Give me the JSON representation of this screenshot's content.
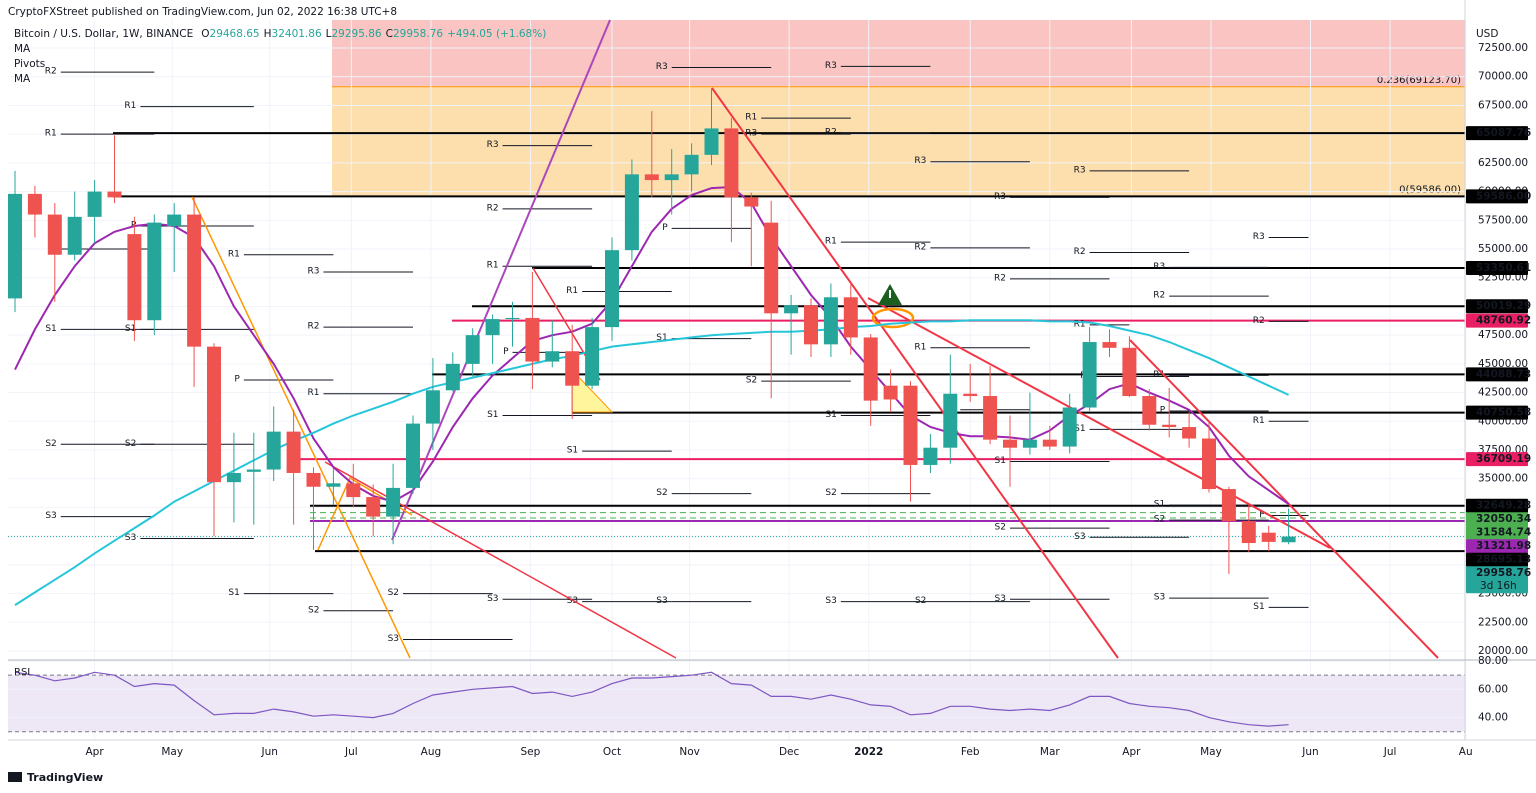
{
  "chart_data": {
    "type": "candlestick",
    "publisher": "CryptoFXStreet published on TradingView.com, Jun 02, 2022 16:38 UTC+8",
    "symbol": "Bitcoin / U.S. Dollar, 1W, BINANCE",
    "ohlc_prefixes": [
      "O",
      "H",
      "L",
      "C"
    ],
    "change": "+494.05 (+1.68%)",
    "indicators": [
      "MA",
      "Pivots",
      "MA"
    ],
    "currency": "USD",
    "countdown": "3d 16h",
    "brand": "TradingView",
    "rsi_title": "RSI",
    "up_color": "#26a69a",
    "down_color": "#ef5350",
    "grid": true,
    "ylim": [
      19390,
      74940
    ],
    "yticks": [
      {
        "value": 72500,
        "label": "72500.00"
      },
      {
        "value": 70000,
        "label": "70000.00"
      },
      {
        "value": 67500,
        "label": "67500.00"
      },
      {
        "value": 65000,
        "label": "65000.00"
      },
      {
        "value": 62500,
        "label": "62500.00"
      },
      {
        "value": 60000,
        "label": "60000.00"
      },
      {
        "value": 57500,
        "label": "57500.00"
      },
      {
        "value": 55000,
        "label": "55000.00"
      },
      {
        "value": 52500,
        "label": "52500.00"
      },
      {
        "value": 50000,
        "label": "50000.00"
      },
      {
        "value": 47500,
        "label": "47500.00"
      },
      {
        "value": 45000,
        "label": "45000.00"
      },
      {
        "value": 42500,
        "label": "42500.00"
      },
      {
        "value": 40000,
        "label": "40000.00"
      },
      {
        "value": 37500,
        "label": "37500.00"
      },
      {
        "value": 35000,
        "label": "35000.00"
      },
      {
        "value": 32500,
        "label": "32500.00"
      },
      {
        "value": 30000,
        "label": "30000.00"
      },
      {
        "value": 27500,
        "label": "27500.00"
      },
      {
        "value": 25000,
        "label": "25000.00"
      },
      {
        "value": 22500,
        "label": "22500.00"
      },
      {
        "value": 20000,
        "label": "20000.00"
      }
    ],
    "xticks": [
      {
        "value": 4,
        "label": "Apr"
      },
      {
        "value": 7.9,
        "label": "May"
      },
      {
        "value": 12.8,
        "label": "Jun"
      },
      {
        "value": 16.9,
        "label": "Jul"
      },
      {
        "value": 20.9,
        "label": "Aug"
      },
      {
        "value": 25.9,
        "label": "Sep"
      },
      {
        "value": 30,
        "label": "Oct"
      },
      {
        "value": 33.9,
        "label": "Nov"
      },
      {
        "value": 38.9,
        "label": "Dec"
      },
      {
        "value": 42.9,
        "label": "2022"
      },
      {
        "value": 48,
        "label": "Feb"
      },
      {
        "value": 52,
        "label": "Mar"
      },
      {
        "value": 56.1,
        "label": "Apr"
      },
      {
        "value": 60.1,
        "label": "May"
      },
      {
        "value": 65.1,
        "label": "Jun"
      },
      {
        "value": 69.1,
        "label": "Jul"
      },
      {
        "value": 72.9,
        "label": "Au"
      }
    ],
    "candles": {
      "open": [
        50700,
        59800,
        58000,
        54500,
        57800,
        60000,
        56300,
        48800,
        57000,
        58000,
        46500,
        34700,
        35600,
        35800,
        39100,
        35500,
        34300,
        34600,
        33400,
        31700,
        34200,
        39800,
        42700,
        45000,
        47500,
        48900,
        49000,
        45200,
        46100,
        43100,
        48200,
        54900,
        61500,
        61000,
        61500,
        63200,
        65500,
        59500,
        57300,
        49400,
        50100,
        46700,
        50800,
        47300,
        43100,
        43100,
        36200,
        37700,
        42400,
        42200,
        38400,
        37700,
        38400,
        37800,
        41200,
        46900,
        46400,
        42200,
        39700,
        39500,
        38500,
        34100,
        31300,
        30300,
        29468.65
      ],
      "high": [
        61800,
        60500,
        59000,
        60000,
        61000,
        64900,
        57800,
        58000,
        59000,
        59500,
        46800,
        39000,
        39000,
        41300,
        41000,
        36000,
        35900,
        36300,
        34500,
        36300,
        40500,
        45500,
        46000,
        48100,
        49300,
        50400,
        53000,
        48800,
        48400,
        49000,
        56000,
        62800,
        67000,
        63700,
        64200,
        69000,
        66400,
        59900,
        59200,
        51000,
        50700,
        52000,
        51900,
        47600,
        44500,
        43500,
        38900,
        45800,
        45000,
        44800,
        40500,
        42500,
        39600,
        42400,
        48200,
        48000,
        47400,
        42800,
        42900,
        40800,
        40000,
        34300,
        32700,
        30900,
        32401.86
      ],
      "low": [
        49500,
        56000,
        50400,
        54000,
        55500,
        59000,
        47000,
        47500,
        53000,
        43000,
        30000,
        31200,
        31000,
        34800,
        31000,
        28800,
        32700,
        32500,
        30000,
        29300,
        33700,
        37500,
        42600,
        43900,
        45000,
        46500,
        42800,
        44700,
        40200,
        42800,
        47000,
        54000,
        59500,
        58000,
        60000,
        62300,
        55600,
        53500,
        42000,
        45800,
        45600,
        45600,
        45800,
        39600,
        40800,
        33000,
        35500,
        36300,
        41700,
        38000,
        34300,
        37100,
        37500,
        37200,
        40900,
        45600,
        42100,
        39200,
        38600,
        37700,
        33800,
        26700,
        28600,
        28700,
        29295.86
      ],
      "close": [
        59800,
        58000,
        54500,
        57800,
        60000,
        59500,
        48800,
        57300,
        58000,
        46500,
        34700,
        35500,
        35800,
        39100,
        35500,
        34300,
        34600,
        33400,
        31700,
        34200,
        39800,
        42700,
        45000,
        47500,
        48900,
        49000,
        45200,
        46100,
        43100,
        48200,
        54900,
        61500,
        61000,
        61500,
        63200,
        65500,
        59500,
        58700,
        49400,
        50100,
        46700,
        50800,
        47300,
        41800,
        41900,
        36200,
        37700,
        42400,
        42200,
        38400,
        37700,
        38400,
        37800,
        41200,
        46900,
        46400,
        42200,
        39700,
        39500,
        38500,
        34100,
        31300,
        29400,
        29500,
        29958.76
      ]
    },
    "lines": [
      {
        "color": "#9c27b0",
        "values": [
          44500,
          48000,
          51000,
          53500,
          55500,
          56500,
          57000,
          57200,
          57000,
          56000,
          53500,
          50000,
          47500,
          45000,
          42000,
          38500,
          36000,
          34500,
          33500,
          33000,
          34000,
          36500,
          39500,
          42000,
          44000,
          45500,
          47000,
          47500,
          47800,
          48500,
          50500,
          53500,
          56500,
          58500,
          59700,
          60300,
          60400,
          59000,
          56000,
          53500,
          51000,
          49000,
          46500,
          44500,
          42500,
          40500,
          39500,
          39000,
          38700,
          38700,
          38600,
          38400,
          39200,
          40500,
          41500,
          42800,
          43300,
          42500,
          41800,
          41000,
          39500,
          37000,
          35200,
          34000,
          32800
        ]
      },
      {
        "color": "#26c6da",
        "values": [
          24000,
          25100,
          26200,
          27300,
          28500,
          29600,
          30700,
          31800,
          33000,
          33900,
          34800,
          35700,
          36600,
          37500,
          38300,
          39000,
          39800,
          40500,
          41100,
          41700,
          42400,
          43000,
          43400,
          43800,
          44200,
          44600,
          45000,
          45400,
          45700,
          46100,
          46500,
          46700,
          46900,
          47100,
          47300,
          47500,
          47600,
          47700,
          47800,
          47800,
          47900,
          48000,
          48200,
          48300,
          48500,
          48600,
          48700,
          48700,
          48800,
          48800,
          48800,
          48800,
          48700,
          48700,
          48600,
          48300,
          47900,
          47500,
          46900,
          46200,
          45500,
          44700,
          43900,
          43100,
          42300
        ]
      }
    ],
    "fib": [
      {
        "value": 69123.7,
        "label": "0.236(69123.70)",
        "color": "#ff9800"
      },
      {
        "value": 59586,
        "label": "0(59586.00)",
        "color": "#4caf50"
      }
    ],
    "levels": [
      {
        "value": 65087.76,
        "label": "65087.76",
        "color": "#000000"
      },
      {
        "value": 59586,
        "label": "59586.00",
        "color": "#000000"
      },
      {
        "value": 53350.61,
        "label": "53350.61",
        "color": "#000000"
      },
      {
        "value": 50019.29,
        "label": "50019.29",
        "color": "#000000"
      },
      {
        "value": 48760.92,
        "label": "48760.92",
        "color": "#e91e63"
      },
      {
        "value": 44088.73,
        "label": "44088.73",
        "color": "#000000"
      },
      {
        "value": 40750.58,
        "label": "40750.58",
        "color": "#000000"
      },
      {
        "value": 36709.19,
        "label": "36709.19",
        "color": "#e91e63"
      },
      {
        "value": 32649.28,
        "label": "32649.28",
        "color": "#000000"
      },
      {
        "value": 32050.34,
        "label": "32050.34",
        "color": "#4caf50",
        "style": "dashed"
      },
      {
        "value": 31584.74,
        "label": "31584.74",
        "color": "#4caf50",
        "style": "dashed"
      },
      {
        "value": 31321.98,
        "label": "31321.98",
        "color": "#9c27b0"
      },
      {
        "value": 28695.13,
        "label": "28695.13",
        "color": "#000000"
      }
    ],
    "pivots": [
      {
        "label": "R2",
        "value": 70400,
        "from": 2.3,
        "to": 7
      },
      {
        "label": "R1",
        "value": 65000,
        "from": 2.3,
        "to": 7
      },
      {
        "label": "P",
        "value": 55000,
        "from": 2.3,
        "to": 7
      },
      {
        "label": "S1",
        "value": 48000,
        "from": 2.3,
        "to": 7
      },
      {
        "label": "S2",
        "value": 38000,
        "from": 2.3,
        "to": 7
      },
      {
        "label": "S3",
        "value": 31700,
        "from": 2.3,
        "to": 7
      },
      {
        "label": "R1",
        "value": 67400,
        "from": 6.3,
        "to": 12
      },
      {
        "label": "P",
        "value": 57000,
        "from": 6.3,
        "to": 12
      },
      {
        "label": "S1",
        "value": 48000,
        "from": 6.3,
        "to": 12
      },
      {
        "label": "S2",
        "value": 38000,
        "from": 6.3,
        "to": 12
      },
      {
        "label": "S3",
        "value": 29800,
        "from": 6.3,
        "to": 12
      },
      {
        "label": "R1",
        "value": 54500,
        "from": 11.5,
        "to": 16
      },
      {
        "label": "P",
        "value": 43600,
        "from": 11.5,
        "to": 16
      },
      {
        "label": "S1",
        "value": 25000,
        "from": 11.5,
        "to": 16
      },
      {
        "label": "R3",
        "value": 53000,
        "from": 15.5,
        "to": 20
      },
      {
        "label": "R2",
        "value": 48200,
        "from": 15.5,
        "to": 20
      },
      {
        "label": "R1",
        "value": 42400,
        "from": 15.5,
        "to": 20
      },
      {
        "label": "S2",
        "value": 23500,
        "from": 15.5,
        "to": 19
      },
      {
        "label": "S2",
        "value": 25000,
        "from": 19.5,
        "to": 24
      },
      {
        "label": "S3",
        "value": 21000,
        "from": 19.5,
        "to": 25
      },
      {
        "label": "R3",
        "value": 64000,
        "from": 24.5,
        "to": 29
      },
      {
        "label": "R2",
        "value": 58500,
        "from": 24.5,
        "to": 29
      },
      {
        "label": "R1",
        "value": 53500,
        "from": 24.5,
        "to": 29
      },
      {
        "label": "P",
        "value": 46000,
        "from": 25,
        "to": 29
      },
      {
        "label": "S1",
        "value": 40500,
        "from": 24.5,
        "to": 29
      },
      {
        "label": "S3",
        "value": 24500,
        "from": 24.5,
        "to": 29
      },
      {
        "label": "R1",
        "value": 51300,
        "from": 28.5,
        "to": 33
      },
      {
        "label": "S1",
        "value": 37400,
        "from": 28.5,
        "to": 33
      },
      {
        "label": "S3",
        "value": 24300,
        "from": 28.5,
        "to": 33
      },
      {
        "label": "P",
        "value": 56800,
        "from": 33,
        "to": 37
      },
      {
        "label": "R3",
        "value": 70800,
        "from": 33,
        "to": 38
      },
      {
        "label": "S1",
        "value": 47200,
        "from": 33,
        "to": 37
      },
      {
        "label": "S2",
        "value": 33700,
        "from": 33,
        "to": 37
      },
      {
        "label": "S3",
        "value": 24300,
        "from": 33,
        "to": 37
      },
      {
        "label": "R1",
        "value": 66400,
        "from": 37.5,
        "to": 42
      },
      {
        "label": "S2",
        "value": 43500,
        "from": 37.5,
        "to": 42
      },
      {
        "label": "R3",
        "value": 65000,
        "from": 37.5,
        "to": 42
      },
      {
        "label": "R3",
        "value": 70900,
        "from": 41.5,
        "to": 46
      },
      {
        "label": "R2",
        "value": 65100,
        "from": 41.5,
        "to": 46
      },
      {
        "label": "R1",
        "value": 55600,
        "from": 41.5,
        "to": 46
      },
      {
        "label": "S1",
        "value": 40500,
        "from": 41.5,
        "to": 46
      },
      {
        "label": "S2",
        "value": 33700,
        "from": 41.5,
        "to": 46
      },
      {
        "label": "S3",
        "value": 24300,
        "from": 41.5,
        "to": 46
      },
      {
        "label": "R3",
        "value": 62600,
        "from": 46,
        "to": 51
      },
      {
        "label": "R2",
        "value": 55100,
        "from": 46,
        "to": 51
      },
      {
        "label": "R1",
        "value": 46400,
        "from": 46,
        "to": 51
      },
      {
        "label": "P",
        "value": 41000,
        "from": 47.5,
        "to": 51
      },
      {
        "label": "S2",
        "value": 24300,
        "from": 46,
        "to": 51
      },
      {
        "label": "R3",
        "value": 59500,
        "from": 50,
        "to": 55
      },
      {
        "label": "R2",
        "value": 52400,
        "from": 50,
        "to": 55
      },
      {
        "label": "S1",
        "value": 36500,
        "from": 50,
        "to": 55
      },
      {
        "label": "S2",
        "value": 30700,
        "from": 50,
        "to": 55
      },
      {
        "label": "S3",
        "value": 24500,
        "from": 50,
        "to": 55
      },
      {
        "label": "R1",
        "value": 48400,
        "from": 54,
        "to": 56
      },
      {
        "label": "R3",
        "value": 61800,
        "from": 54,
        "to": 59
      },
      {
        "label": "R2",
        "value": 54700,
        "from": 54,
        "to": 59
      },
      {
        "label": "P",
        "value": 43900,
        "from": 54,
        "to": 59
      },
      {
        "label": "S1",
        "value": 39300,
        "from": 54,
        "to": 59
      },
      {
        "label": "S3",
        "value": 29900,
        "from": 54,
        "to": 59
      },
      {
        "label": "R3",
        "value": 53400,
        "from": 58,
        "to": 63
      },
      {
        "label": "R2",
        "value": 50900,
        "from": 58,
        "to": 63
      },
      {
        "label": "R1",
        "value": 44000,
        "from": 58,
        "to": 63
      },
      {
        "label": "P",
        "value": 40900,
        "from": 58,
        "to": 63
      },
      {
        "label": "S1",
        "value": 32700,
        "from": 58,
        "to": 63
      },
      {
        "label": "S2",
        "value": 31400,
        "from": 58,
        "to": 63
      },
      {
        "label": "S3",
        "value": 24600,
        "from": 58,
        "to": 63
      },
      {
        "label": "R3",
        "value": 56000,
        "from": 63,
        "to": 65
      },
      {
        "label": "R2",
        "value": 48700,
        "from": 63,
        "to": 65
      },
      {
        "label": "R1",
        "value": 40000,
        "from": 63,
        "to": 65
      },
      {
        "label": "P",
        "value": 31800,
        "from": 63,
        "to": 65
      },
      {
        "label": "S1",
        "value": 23800,
        "from": 63,
        "to": 65
      }
    ],
    "rsi": {
      "color": "#7e57c2",
      "ylim": [
        27,
        80
      ],
      "bands": [
        30,
        70
      ],
      "yticks": [
        {
          "value": 80,
          "label": "80.00"
        },
        {
          "value": 60,
          "label": "60.00"
        },
        {
          "value": 40,
          "label": "40.00"
        }
      ],
      "values": [
        72,
        70,
        66,
        68,
        72,
        70,
        62,
        64,
        63,
        52,
        42,
        43,
        43,
        46,
        44,
        41,
        42,
        41,
        40,
        43,
        50,
        56,
        58,
        60,
        61,
        62,
        57,
        58,
        55,
        58,
        64,
        68,
        68,
        69,
        70,
        72,
        64,
        63,
        55,
        55,
        53,
        56,
        53,
        49,
        48,
        42,
        43,
        48,
        48,
        46,
        45,
        46,
        45,
        49,
        55,
        55,
        50,
        48,
        47,
        45,
        40,
        37,
        35,
        34,
        35
      ]
    }
  }
}
